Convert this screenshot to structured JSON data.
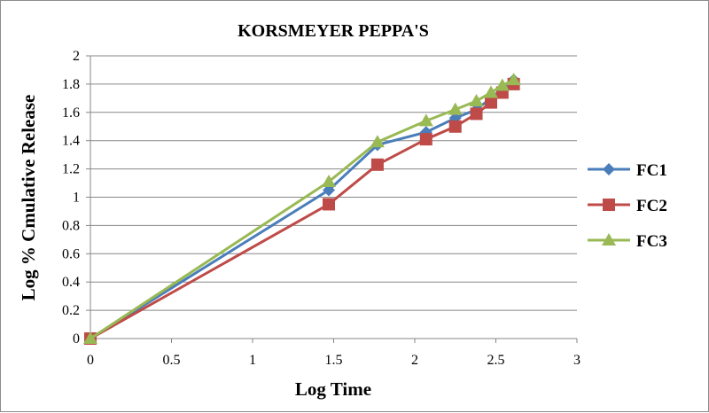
{
  "chart_data": {
    "type": "line",
    "title": "KORSMEYER PEPPA'S",
    "xlabel": "Log Time",
    "ylabel": "Log % Cmulative Release",
    "xlim": [
      0,
      3
    ],
    "ylim": [
      0,
      2
    ],
    "x_ticks": [
      "0",
      "0.5",
      "1",
      "1.5",
      "2",
      "2.5",
      "3"
    ],
    "y_ticks": [
      "0",
      "0.2",
      "0.4",
      "0.6",
      "0.8",
      "1",
      "1.2",
      "1.4",
      "1.6",
      "1.8",
      "2"
    ],
    "grid": "horizontal",
    "legend_position": "right",
    "series": [
      {
        "name": "FC1",
        "color": "#4a7ebb",
        "marker": "diamond",
        "x": [
          0,
          1.47,
          1.77,
          2.07,
          2.25,
          2.38,
          2.47,
          2.54,
          2.61
        ],
        "y": [
          0,
          1.05,
          1.37,
          1.46,
          1.56,
          1.62,
          1.7,
          1.77,
          1.83
        ]
      },
      {
        "name": "FC2",
        "color": "#be4b48",
        "marker": "square",
        "x": [
          0,
          1.47,
          1.77,
          2.07,
          2.25,
          2.38,
          2.47,
          2.54,
          2.61
        ],
        "y": [
          0,
          0.95,
          1.23,
          1.41,
          1.5,
          1.59,
          1.67,
          1.74,
          1.8
        ]
      },
      {
        "name": "FC3",
        "color": "#98b954",
        "marker": "triangle",
        "x": [
          0,
          1.47,
          1.77,
          2.07,
          2.25,
          2.38,
          2.47,
          2.54,
          2.61
        ],
        "y": [
          0,
          1.11,
          1.39,
          1.54,
          1.62,
          1.68,
          1.74,
          1.79,
          1.83
        ]
      }
    ]
  }
}
